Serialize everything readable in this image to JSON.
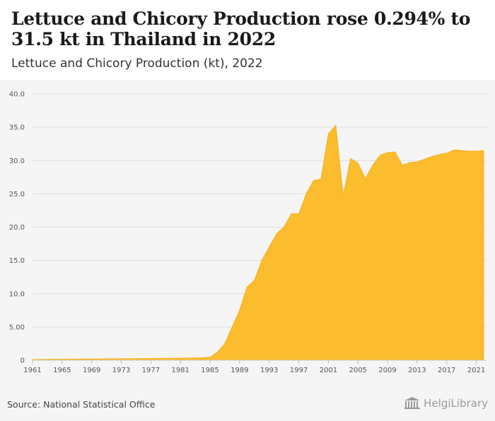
{
  "header": {
    "title": "Lettuce and Chicory Production rose 0.294% to 31.5 kt in Thailand in 2022",
    "subtitle": "Lettuce and Chicory Production (kt), 2022"
  },
  "footer": {
    "source": "Source: National Statistical Office",
    "brand": "HelgiLibrary"
  },
  "colors": {
    "area_fill": "#fbbc2e",
    "area_stroke": "#f5b120",
    "grid": "#dddddd",
    "chart_background": "#f5f5f5"
  },
  "chart_data": {
    "type": "area",
    "title": "",
    "xlabel": "",
    "ylabel": "",
    "ylim": [
      0,
      40
    ],
    "grid": true,
    "legend": "none",
    "yticks": [
      "0",
      "5.00",
      "10.0",
      "15.0",
      "20.0",
      "25.0",
      "30.0",
      "35.0",
      "40.0"
    ],
    "xticks": [
      "1961",
      "1965",
      "1969",
      "1973",
      "1977",
      "1981",
      "1985",
      "1989",
      "1993",
      "1997",
      "2001",
      "2005",
      "2009",
      "2013",
      "2017",
      "2021"
    ],
    "series": [
      {
        "x": [
          1961,
          1962,
          1963,
          1964,
          1965,
          1966,
          1967,
          1968,
          1969,
          1970,
          1971,
          1972,
          1973,
          1974,
          1975,
          1976,
          1977,
          1978,
          1979,
          1980,
          1981,
          1982,
          1983,
          1984,
          1985,
          1986,
          1987,
          1988,
          1989,
          1990,
          1991,
          1992,
          1993,
          1994,
          1995,
          1996,
          1997,
          1998,
          1999,
          2000,
          2001,
          2002,
          2003,
          2004,
          2005,
          2006,
          2007,
          2008,
          2009,
          2010,
          2011,
          2012,
          2013,
          2014,
          2015,
          2016,
          2017,
          2018,
          2019,
          2020,
          2021,
          2022
        ],
        "values": [
          0.1,
          0.12,
          0.13,
          0.14,
          0.15,
          0.16,
          0.17,
          0.18,
          0.19,
          0.2,
          0.21,
          0.22,
          0.23,
          0.24,
          0.25,
          0.26,
          0.27,
          0.28,
          0.29,
          0.3,
          0.31,
          0.33,
          0.35,
          0.38,
          0.45,
          1.2,
          2.5,
          5.0,
          7.5,
          11.0,
          12.0,
          15.0,
          17.0,
          19.0,
          20.0,
          22.0,
          22.0,
          25.0,
          27.0,
          27.2,
          34.0,
          35.3,
          24.7,
          30.3,
          29.6,
          27.3,
          29.3,
          30.8,
          31.2,
          31.3,
          29.3,
          29.7,
          29.8,
          30.2,
          30.6,
          30.9,
          31.1,
          31.6,
          31.5,
          31.4,
          31.4,
          31.5
        ]
      }
    ]
  }
}
